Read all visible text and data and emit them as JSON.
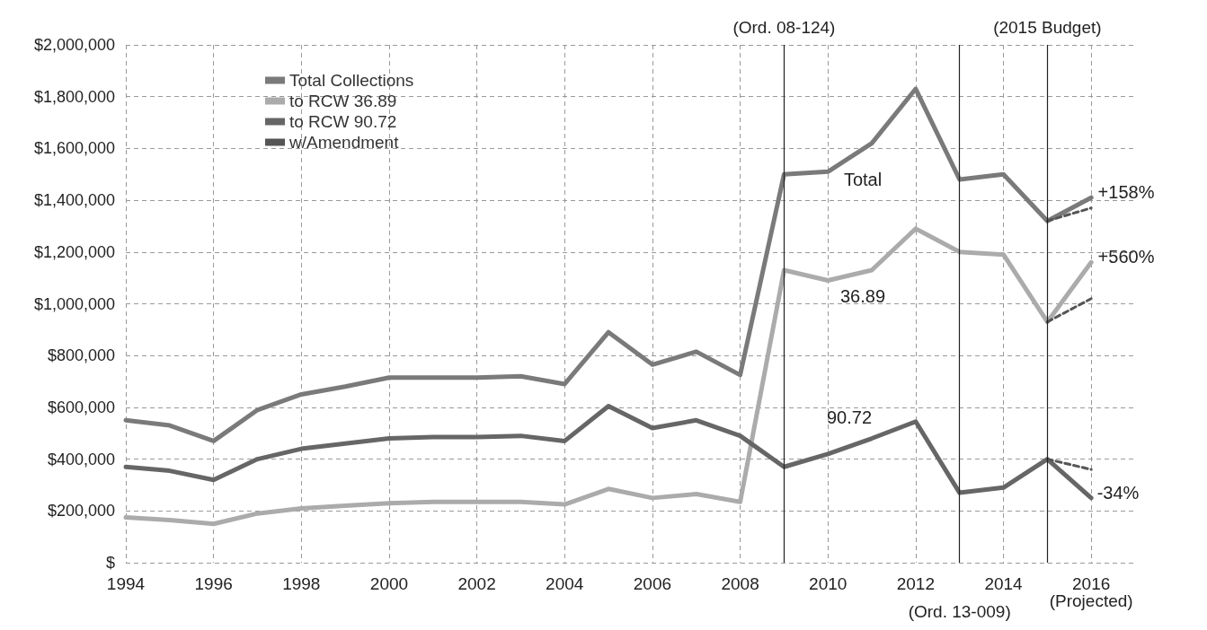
{
  "chart_data": {
    "type": "line",
    "x": [
      1994,
      1995,
      1996,
      1997,
      1998,
      1999,
      2000,
      2001,
      2002,
      2003,
      2004,
      2005,
      2006,
      2007,
      2008,
      2009,
      2010,
      2011,
      2012,
      2013,
      2014,
      2015,
      2016
    ],
    "series": [
      {
        "name": "Total Collections",
        "color": "#7a7a7a",
        "values": [
          550000,
          530000,
          470000,
          590000,
          650000,
          680000,
          715000,
          715000,
          715000,
          720000,
          690000,
          890000,
          765000,
          815000,
          725000,
          1500000,
          1510000,
          1620000,
          1830000,
          1480000,
          1500000,
          1320000,
          1410000
        ]
      },
      {
        "name": "to RCW 36.89",
        "color": "#ababab",
        "values": [
          175000,
          165000,
          150000,
          190000,
          210000,
          220000,
          230000,
          235000,
          235000,
          235000,
          225000,
          285000,
          250000,
          265000,
          235000,
          1130000,
          1090000,
          1130000,
          1290000,
          1200000,
          1190000,
          930000,
          1160000
        ]
      },
      {
        "name": "to RCW 90.72",
        "color": "#666666",
        "values": [
          370000,
          355000,
          320000,
          400000,
          440000,
          460000,
          480000,
          485000,
          485000,
          490000,
          470000,
          605000,
          520000,
          550000,
          490000,
          370000,
          420000,
          480000,
          545000,
          270000,
          290000,
          400000,
          250000
        ]
      },
      {
        "name": "w/Amendment",
        "color": "#555555",
        "line_style": "dashed",
        "values": [
          null,
          null,
          null,
          null,
          null,
          null,
          null,
          null,
          null,
          null,
          null,
          null,
          null,
          null,
          null,
          null,
          null,
          null,
          null,
          null,
          null,
          1320000,
          1370000
        ]
      },
      {
        "color": "#555555",
        "line_style": "dashed",
        "values": [
          null,
          null,
          null,
          null,
          null,
          null,
          null,
          null,
          null,
          null,
          null,
          null,
          null,
          null,
          null,
          null,
          null,
          null,
          null,
          null,
          null,
          930000,
          1020000
        ]
      },
      {
        "color": "#555555",
        "line_style": "dashed",
        "values": [
          null,
          null,
          null,
          null,
          null,
          null,
          null,
          null,
          null,
          null,
          null,
          null,
          null,
          null,
          null,
          null,
          null,
          null,
          null,
          null,
          null,
          400000,
          360000
        ]
      }
    ],
    "xlim": [
      1994,
      2017
    ],
    "xticks": [
      1994,
      1996,
      1998,
      2000,
      2002,
      2004,
      2006,
      2008,
      2010,
      2012,
      2014,
      {
        "value": 2016,
        "label": "2016\n(Projected)"
      }
    ],
    "ylim": [
      0,
      2000000
    ],
    "yticks": [
      {
        "value": 0,
        "label": "$"
      },
      {
        "value": 200000,
        "label": "$200,000"
      },
      {
        "value": 400000,
        "label": "$400,000"
      },
      {
        "value": 600000,
        "label": "$600,000"
      },
      {
        "value": 800000,
        "label": "$800,000"
      },
      {
        "value": 1000000,
        "label": "$1,000,000"
      },
      {
        "value": 1200000,
        "label": "$1,200,000"
      },
      {
        "value": 1400000,
        "label": "$1,400,000"
      },
      {
        "value": 1600000,
        "label": "$1,600,000"
      },
      {
        "value": 1800000,
        "label": "$1,800,000"
      },
      {
        "value": 2000000,
        "label": "$2,000,000"
      }
    ],
    "ref_lines": [
      {
        "axis": "x",
        "value": 2009,
        "label": "(Ord. 08-124)",
        "color": "#222222"
      },
      {
        "axis": "x",
        "value": 2013,
        "label": "(Ord. 13-009)",
        "color": "#222222"
      },
      {
        "axis": "x",
        "value": 2015,
        "label": "(2015 Budget)",
        "color": "#222222"
      }
    ],
    "annotations": [
      "Total",
      "36.89",
      "90.72",
      "+158%",
      "+560%",
      "-34%"
    ],
    "grid": true,
    "legend": "top left",
    "marker": "none",
    "line_style": "solid"
  }
}
